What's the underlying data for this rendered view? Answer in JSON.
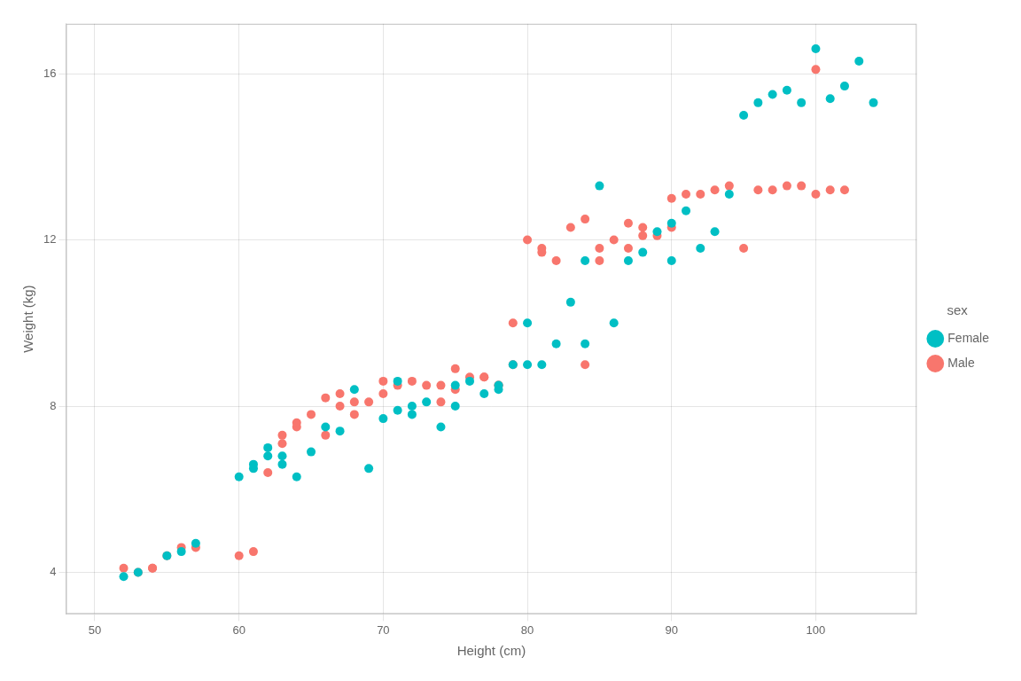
{
  "chart_data": {
    "type": "scatter",
    "xlabel": "Height (cm)",
    "ylabel": "Weight (kg)",
    "legend_title": "sex",
    "legend": "right",
    "grid": true,
    "xlim": [
      48,
      107
    ],
    "ylim": [
      3.0,
      17.2
    ],
    "xticks": [
      50,
      60,
      70,
      80,
      90,
      100
    ],
    "yticks": [
      4,
      8,
      12,
      16
    ],
    "series": [
      {
        "name": "Male",
        "color": "#F8766D",
        "marker": "circle",
        "x": [
          52,
          53,
          54,
          54,
          55,
          56,
          57,
          60,
          61,
          62,
          63,
          63,
          64,
          64,
          65,
          66,
          66,
          67,
          67,
          68,
          68,
          69,
          70,
          70,
          71,
          72,
          73,
          74,
          74,
          75,
          75,
          76,
          77,
          77,
          78,
          78,
          79,
          79,
          80,
          81,
          81,
          82,
          83,
          84,
          84,
          85,
          85,
          86,
          87,
          87,
          88,
          88,
          89,
          90,
          90,
          91,
          92,
          93,
          94,
          95,
          96,
          97,
          98,
          99,
          100,
          100,
          101,
          102
        ],
        "values": [
          4.1,
          4.0,
          4.1,
          4.1,
          4.4,
          4.6,
          4.6,
          4.4,
          4.5,
          6.4,
          7.1,
          7.3,
          7.5,
          7.6,
          7.8,
          8.2,
          7.3,
          8.3,
          8.0,
          8.1,
          7.8,
          8.1,
          8.3,
          8.6,
          8.5,
          8.6,
          8.5,
          8.1,
          8.5,
          8.9,
          8.4,
          8.7,
          8.7,
          8.7,
          8.5,
          8.5,
          10.0,
          9.0,
          12.0,
          11.8,
          11.7,
          11.5,
          12.3,
          12.5,
          9.0,
          11.5,
          11.8,
          12.0,
          12.4,
          11.8,
          12.1,
          12.3,
          12.1,
          13.0,
          12.3,
          13.1,
          13.1,
          13.2,
          13.3,
          11.8,
          13.2,
          13.2,
          13.3,
          13.3,
          16.1,
          13.1,
          13.2,
          13.2
        ]
      },
      {
        "name": "Female",
        "color": "#00BFC4",
        "marker": "circle",
        "x": [
          52,
          53,
          55,
          56,
          57,
          60,
          61,
          61,
          62,
          62,
          63,
          63,
          64,
          65,
          66,
          67,
          68,
          69,
          70,
          71,
          71,
          72,
          72,
          73,
          74,
          75,
          75,
          76,
          77,
          78,
          78,
          79,
          80,
          80,
          81,
          82,
          83,
          84,
          84,
          85,
          86,
          87,
          88,
          89,
          90,
          90,
          91,
          92,
          93,
          94,
          95,
          96,
          97,
          98,
          99,
          100,
          101,
          102,
          103,
          104
        ],
        "values": [
          3.9,
          4.0,
          4.4,
          4.5,
          4.7,
          6.3,
          6.5,
          6.6,
          6.8,
          7.0,
          6.6,
          6.8,
          6.3,
          6.9,
          7.5,
          7.4,
          8.4,
          6.5,
          7.7,
          7.9,
          8.6,
          7.8,
          8.0,
          8.1,
          7.5,
          8.0,
          8.5,
          8.6,
          8.3,
          8.4,
          8.5,
          9.0,
          10.0,
          9.0,
          9.0,
          9.5,
          10.5,
          11.5,
          9.5,
          13.3,
          10.0,
          11.5,
          11.7,
          12.2,
          12.4,
          11.5,
          12.7,
          11.8,
          12.2,
          13.1,
          15.0,
          15.3,
          15.5,
          15.6,
          15.3,
          16.6,
          15.4,
          15.7,
          16.3,
          15.3
        ]
      }
    ]
  }
}
